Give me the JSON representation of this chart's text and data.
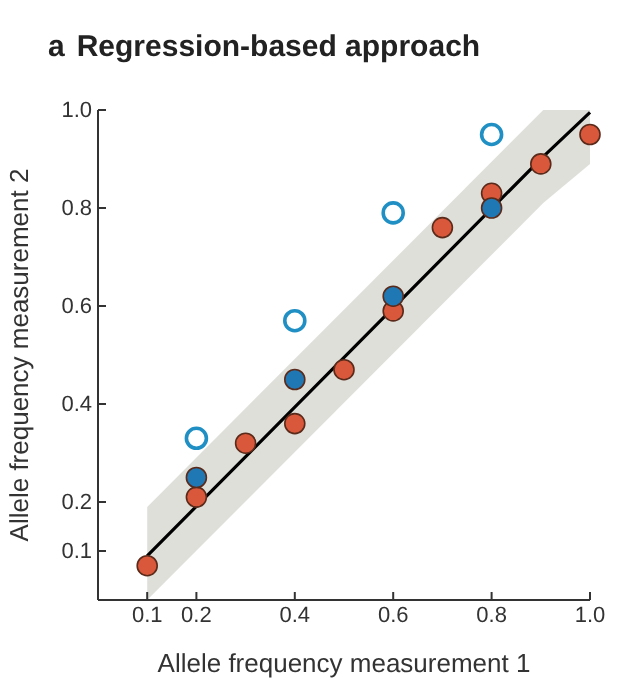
{
  "chart_data": {
    "type": "scatter",
    "title": "a Regression-based approach",
    "xlabel": "Allele frequency measurement 1",
    "ylabel": "Allele frequency measurement 2",
    "xlim": [
      0,
      1
    ],
    "ylim": [
      0,
      1
    ],
    "xticks": [
      0.1,
      0.2,
      0.4,
      0.6,
      0.8,
      {
        "value": 1,
        "label": "1.0"
      }
    ],
    "yticks": [
      0.1,
      0.2,
      0.4,
      0.6,
      0.8,
      {
        "value": 1,
        "label": "1.0"
      }
    ],
    "grid": false,
    "marker": "circle",
    "series": [
      {
        "type": "line",
        "marker": "none",
        "color": "#000000",
        "x": [
          0.1,
          0.905,
          1.0
        ],
        "values": [
          0.09,
          0.905,
          0.995
        ],
        "lower": [
          0.0,
          0.81,
          0.89
        ],
        "upper": [
          0.19,
          1.0,
          1.0
        ]
      },
      {
        "color": "#d9573a",
        "x": [
          0.1,
          0.2,
          0.3,
          0.4,
          0.5,
          0.6,
          0.7,
          0.8,
          0.9,
          1.0
        ],
        "values": [
          0.07,
          0.21,
          0.32,
          0.36,
          0.47,
          0.59,
          0.76,
          0.83,
          0.89,
          0.95
        ]
      },
      {
        "color": "#1f78b4",
        "x": [
          0.2,
          0.4,
          0.6,
          0.8
        ],
        "values": [
          0.25,
          0.45,
          0.62,
          0.8
        ]
      },
      {
        "color": "#1f8fc4",
        "marker": "circle-open",
        "x": [
          0.2,
          0.4,
          0.6,
          0.8
        ],
        "values": [
          0.33,
          0.57,
          0.79,
          0.95
        ]
      }
    ]
  }
}
